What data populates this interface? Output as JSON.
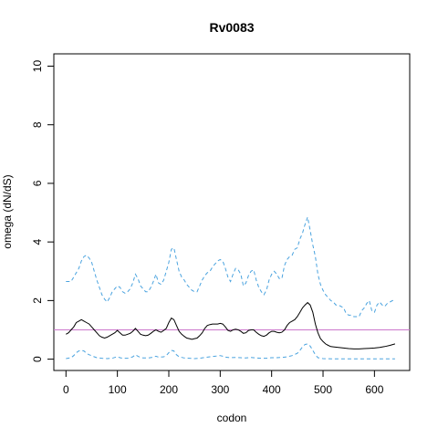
{
  "chart_data": {
    "type": "line",
    "title": "Rv0083",
    "xlabel": "codon",
    "ylabel": "omega (dN/dS)",
    "xlim": [
      0,
      640
    ],
    "ylim": [
      0,
      10
    ],
    "x_ticks": [
      0,
      100,
      200,
      300,
      400,
      500,
      600
    ],
    "y_ticks": [
      0,
      2,
      4,
      6,
      8,
      10
    ],
    "reference_line": {
      "y": 1,
      "color": "#cc77cc"
    },
    "series": [
      {
        "style": "dashed",
        "color": "#4aa3df",
        "role": "upper",
        "points": [
          [
            0,
            2.65
          ],
          [
            10,
            2.65
          ],
          [
            15,
            2.8
          ],
          [
            20,
            2.95
          ],
          [
            25,
            3.1
          ],
          [
            30,
            3.35
          ],
          [
            35,
            3.5
          ],
          [
            40,
            3.55
          ],
          [
            45,
            3.45
          ],
          [
            50,
            3.3
          ],
          [
            55,
            3.0
          ],
          [
            60,
            2.7
          ],
          [
            65,
            2.45
          ],
          [
            70,
            2.2
          ],
          [
            75,
            2.05
          ],
          [
            80,
            1.95
          ],
          [
            85,
            2.1
          ],
          [
            90,
            2.3
          ],
          [
            95,
            2.4
          ],
          [
            100,
            2.5
          ],
          [
            105,
            2.45
          ],
          [
            110,
            2.3
          ],
          [
            115,
            2.25
          ],
          [
            120,
            2.3
          ],
          [
            125,
            2.4
          ],
          [
            130,
            2.6
          ],
          [
            135,
            2.9
          ],
          [
            140,
            2.75
          ],
          [
            145,
            2.5
          ],
          [
            150,
            2.4
          ],
          [
            155,
            2.3
          ],
          [
            160,
            2.3
          ],
          [
            165,
            2.45
          ],
          [
            170,
            2.65
          ],
          [
            175,
            2.9
          ],
          [
            180,
            2.6
          ],
          [
            185,
            2.55
          ],
          [
            190,
            2.7
          ],
          [
            195,
            3.0
          ],
          [
            200,
            3.3
          ],
          [
            205,
            3.75
          ],
          [
            210,
            3.8
          ],
          [
            215,
            3.4
          ],
          [
            220,
            3.0
          ],
          [
            225,
            2.8
          ],
          [
            230,
            2.7
          ],
          [
            235,
            2.55
          ],
          [
            240,
            2.45
          ],
          [
            245,
            2.35
          ],
          [
            250,
            2.3
          ],
          [
            255,
            2.3
          ],
          [
            260,
            2.5
          ],
          [
            265,
            2.7
          ],
          [
            270,
            2.85
          ],
          [
            275,
            2.95
          ],
          [
            280,
            3.0
          ],
          [
            285,
            3.15
          ],
          [
            290,
            3.25
          ],
          [
            295,
            3.35
          ],
          [
            300,
            3.4
          ],
          [
            305,
            3.35
          ],
          [
            310,
            3.1
          ],
          [
            315,
            2.8
          ],
          [
            320,
            2.65
          ],
          [
            325,
            2.9
          ],
          [
            330,
            3.1
          ],
          [
            335,
            3.05
          ],
          [
            340,
            2.9
          ],
          [
            345,
            2.5
          ],
          [
            350,
            2.6
          ],
          [
            355,
            2.85
          ],
          [
            360,
            3.0
          ],
          [
            365,
            3.05
          ],
          [
            370,
            2.7
          ],
          [
            375,
            2.45
          ],
          [
            380,
            2.3
          ],
          [
            385,
            2.2
          ],
          [
            390,
            2.35
          ],
          [
            395,
            2.7
          ],
          [
            400,
            2.9
          ],
          [
            405,
            3.0
          ],
          [
            410,
            2.9
          ],
          [
            415,
            2.75
          ],
          [
            420,
            2.75
          ],
          [
            425,
            3.2
          ],
          [
            430,
            3.4
          ],
          [
            435,
            3.5
          ],
          [
            440,
            3.55
          ],
          [
            445,
            3.75
          ],
          [
            450,
            3.8
          ],
          [
            455,
            4.1
          ],
          [
            460,
            4.3
          ],
          [
            465,
            4.6
          ],
          [
            470,
            4.85
          ],
          [
            475,
            4.4
          ],
          [
            480,
            3.9
          ],
          [
            485,
            3.5
          ],
          [
            490,
            2.9
          ],
          [
            495,
            2.55
          ],
          [
            500,
            2.35
          ],
          [
            505,
            2.2
          ],
          [
            510,
            2.1
          ],
          [
            515,
            2.0
          ],
          [
            520,
            1.95
          ],
          [
            525,
            1.85
          ],
          [
            530,
            1.85
          ],
          [
            535,
            1.8
          ],
          [
            540,
            1.75
          ],
          [
            545,
            1.55
          ],
          [
            550,
            1.5
          ],
          [
            555,
            1.5
          ],
          [
            560,
            1.45
          ],
          [
            565,
            1.45
          ],
          [
            570,
            1.45
          ],
          [
            575,
            1.65
          ],
          [
            580,
            1.75
          ],
          [
            585,
            1.9
          ],
          [
            590,
            2.0
          ],
          [
            595,
            1.65
          ],
          [
            600,
            1.6
          ],
          [
            605,
            1.85
          ],
          [
            610,
            1.95
          ],
          [
            615,
            1.85
          ],
          [
            620,
            1.8
          ],
          [
            625,
            1.9
          ],
          [
            630,
            1.95
          ],
          [
            635,
            2.0
          ],
          [
            640,
            2.0
          ]
        ]
      },
      {
        "style": "solid",
        "color": "#000000",
        "role": "estimate",
        "points": [
          [
            0,
            0.85
          ],
          [
            5,
            0.9
          ],
          [
            10,
            1.0
          ],
          [
            15,
            1.1
          ],
          [
            20,
            1.25
          ],
          [
            25,
            1.3
          ],
          [
            30,
            1.35
          ],
          [
            35,
            1.3
          ],
          [
            40,
            1.25
          ],
          [
            45,
            1.2
          ],
          [
            50,
            1.1
          ],
          [
            55,
            1.0
          ],
          [
            60,
            0.9
          ],
          [
            65,
            0.8
          ],
          [
            70,
            0.75
          ],
          [
            75,
            0.72
          ],
          [
            80,
            0.75
          ],
          [
            85,
            0.8
          ],
          [
            90,
            0.85
          ],
          [
            95,
            0.9
          ],
          [
            100,
            0.98
          ],
          [
            105,
            0.9
          ],
          [
            110,
            0.82
          ],
          [
            115,
            0.82
          ],
          [
            120,
            0.85
          ],
          [
            125,
            0.88
          ],
          [
            130,
            0.95
          ],
          [
            135,
            1.05
          ],
          [
            140,
            0.95
          ],
          [
            145,
            0.85
          ],
          [
            150,
            0.82
          ],
          [
            155,
            0.8
          ],
          [
            160,
            0.82
          ],
          [
            165,
            0.88
          ],
          [
            170,
            0.95
          ],
          [
            175,
            1.0
          ],
          [
            180,
            0.95
          ],
          [
            185,
            0.92
          ],
          [
            190,
            0.98
          ],
          [
            195,
            1.05
          ],
          [
            200,
            1.25
          ],
          [
            205,
            1.4
          ],
          [
            210,
            1.35
          ],
          [
            215,
            1.15
          ],
          [
            220,
            0.95
          ],
          [
            225,
            0.85
          ],
          [
            230,
            0.78
          ],
          [
            235,
            0.72
          ],
          [
            240,
            0.7
          ],
          [
            245,
            0.68
          ],
          [
            250,
            0.7
          ],
          [
            255,
            0.72
          ],
          [
            260,
            0.8
          ],
          [
            265,
            0.9
          ],
          [
            270,
            1.05
          ],
          [
            275,
            1.15
          ],
          [
            280,
            1.18
          ],
          [
            285,
            1.2
          ],
          [
            290,
            1.2
          ],
          [
            295,
            1.2
          ],
          [
            300,
            1.22
          ],
          [
            305,
            1.2
          ],
          [
            310,
            1.1
          ],
          [
            315,
            0.98
          ],
          [
            320,
            0.95
          ],
          [
            325,
            1.0
          ],
          [
            330,
            1.02
          ],
          [
            335,
            1.0
          ],
          [
            340,
            0.95
          ],
          [
            345,
            0.88
          ],
          [
            350,
            0.9
          ],
          [
            355,
            0.98
          ],
          [
            360,
            1.0
          ],
          [
            365,
            1.0
          ],
          [
            370,
            0.92
          ],
          [
            375,
            0.85
          ],
          [
            380,
            0.8
          ],
          [
            385,
            0.78
          ],
          [
            390,
            0.82
          ],
          [
            395,
            0.9
          ],
          [
            400,
            0.95
          ],
          [
            405,
            0.95
          ],
          [
            410,
            0.92
          ],
          [
            415,
            0.9
          ],
          [
            420,
            0.92
          ],
          [
            425,
            1.0
          ],
          [
            430,
            1.15
          ],
          [
            435,
            1.25
          ],
          [
            440,
            1.3
          ],
          [
            445,
            1.35
          ],
          [
            450,
            1.45
          ],
          [
            455,
            1.6
          ],
          [
            460,
            1.75
          ],
          [
            465,
            1.85
          ],
          [
            470,
            1.93
          ],
          [
            475,
            1.85
          ],
          [
            480,
            1.6
          ],
          [
            485,
            1.2
          ],
          [
            490,
            0.9
          ],
          [
            495,
            0.7
          ],
          [
            500,
            0.6
          ],
          [
            505,
            0.52
          ],
          [
            510,
            0.47
          ],
          [
            515,
            0.43
          ],
          [
            520,
            0.42
          ],
          [
            530,
            0.4
          ],
          [
            540,
            0.38
          ],
          [
            550,
            0.36
          ],
          [
            560,
            0.35
          ],
          [
            570,
            0.35
          ],
          [
            580,
            0.36
          ],
          [
            590,
            0.37
          ],
          [
            600,
            0.38
          ],
          [
            610,
            0.4
          ],
          [
            620,
            0.43
          ],
          [
            630,
            0.47
          ],
          [
            640,
            0.52
          ]
        ]
      },
      {
        "style": "dashed",
        "color": "#4aa3df",
        "role": "lower",
        "points": [
          [
            0,
            0.02
          ],
          [
            10,
            0.05
          ],
          [
            15,
            0.12
          ],
          [
            20,
            0.22
          ],
          [
            25,
            0.28
          ],
          [
            30,
            0.3
          ],
          [
            35,
            0.28
          ],
          [
            40,
            0.2
          ],
          [
            45,
            0.15
          ],
          [
            50,
            0.12
          ],
          [
            55,
            0.08
          ],
          [
            60,
            0.05
          ],
          [
            70,
            0.03
          ],
          [
            80,
            0.02
          ],
          [
            90,
            0.03
          ],
          [
            95,
            0.06
          ],
          [
            100,
            0.08
          ],
          [
            105,
            0.05
          ],
          [
            110,
            0.03
          ],
          [
            120,
            0.03
          ],
          [
            125,
            0.05
          ],
          [
            130,
            0.08
          ],
          [
            135,
            0.15
          ],
          [
            140,
            0.1
          ],
          [
            145,
            0.06
          ],
          [
            150,
            0.04
          ],
          [
            160,
            0.04
          ],
          [
            170,
            0.07
          ],
          [
            175,
            0.1
          ],
          [
            180,
            0.07
          ],
          [
            190,
            0.08
          ],
          [
            195,
            0.12
          ],
          [
            200,
            0.22
          ],
          [
            205,
            0.3
          ],
          [
            210,
            0.28
          ],
          [
            215,
            0.15
          ],
          [
            220,
            0.08
          ],
          [
            230,
            0.04
          ],
          [
            240,
            0.03
          ],
          [
            250,
            0.02
          ],
          [
            260,
            0.03
          ],
          [
            270,
            0.06
          ],
          [
            280,
            0.08
          ],
          [
            290,
            0.1
          ],
          [
            300,
            0.12
          ],
          [
            305,
            0.1
          ],
          [
            310,
            0.07
          ],
          [
            320,
            0.05
          ],
          [
            330,
            0.06
          ],
          [
            340,
            0.05
          ],
          [
            350,
            0.04
          ],
          [
            360,
            0.06
          ],
          [
            370,
            0.04
          ],
          [
            380,
            0.03
          ],
          [
            390,
            0.03
          ],
          [
            400,
            0.05
          ],
          [
            410,
            0.05
          ],
          [
            420,
            0.06
          ],
          [
            430,
            0.08
          ],
          [
            440,
            0.12
          ],
          [
            450,
            0.2
          ],
          [
            455,
            0.3
          ],
          [
            460,
            0.42
          ],
          [
            465,
            0.5
          ],
          [
            470,
            0.52
          ],
          [
            475,
            0.45
          ],
          [
            480,
            0.3
          ],
          [
            485,
            0.15
          ],
          [
            490,
            0.05
          ],
          [
            500,
            0.02
          ],
          [
            520,
            0.01
          ],
          [
            560,
            0.01
          ],
          [
            600,
            0.01
          ],
          [
            640,
            0.01
          ]
        ]
      }
    ]
  }
}
